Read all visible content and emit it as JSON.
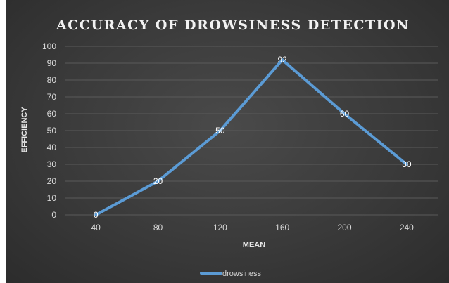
{
  "chart_data": {
    "type": "line",
    "title": "ACCURACY OF DROWSINESS DETECTION",
    "xlabel": "MEAN",
    "ylabel": "EFFICIENCY",
    "categories": [
      "40",
      "80",
      "120",
      "160",
      "200",
      "240"
    ],
    "series": [
      {
        "name": "drowsiness",
        "values": [
          0,
          20,
          50,
          92,
          60,
          30
        ],
        "color": "#5b9bd5"
      }
    ],
    "ylim": [
      0,
      100
    ],
    "yticks": [
      "0",
      "10",
      "20",
      "30",
      "40",
      "50",
      "60",
      "70",
      "80",
      "90",
      "100"
    ],
    "data_labels": [
      "0",
      "20",
      "50",
      "92",
      "60",
      "30"
    ],
    "grid": true,
    "legend_position": "bottom"
  }
}
